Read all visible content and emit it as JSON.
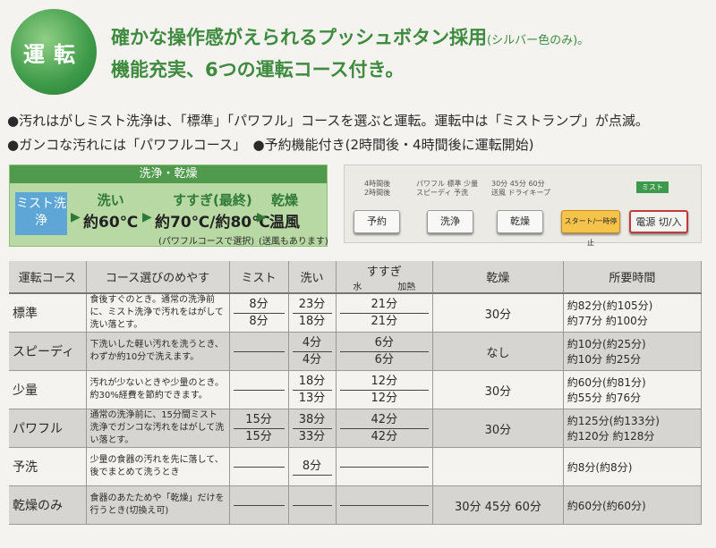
{
  "badge": "運転",
  "headline1": "確かな操作感がえられるプッシュボタン採用",
  "headline1_note": "(シルバー色のみ)。",
  "headline2": "機能充実、6つの運転コース付き。",
  "bullet1": "●汚れはがしミスト洗浄は、「標準」「パワフル」コースを選ぶと運転。運転中は「ミストランプ」が点滅。",
  "bullet2": "●ガンコな汚れには「パワフルコース」　●予約機能付き(2時間後・4時間後に運転開始)",
  "process": {
    "title": "洗浄・乾燥",
    "mist": "ミスト洗浄",
    "wash_label": "洗い",
    "wash_value": "約60℃",
    "rinse_label": "すすぎ(最終)",
    "rinse_value": "約70℃/約80℃",
    "rinse_note": "(パワフルコースで選択)",
    "dry_label": "乾燥",
    "dry_value": "温風",
    "dry_note": "(送風もあります)"
  },
  "panel": {
    "timer_labels": "4時間後\n2時間後",
    "course_labels": "パワフル 標準 少量\nスピーディ 予洗",
    "dry_labels": "30分 45分 60分\n送風 ドライキープ",
    "mist_tag": "ミスト",
    "buttons": [
      "予約",
      "洗浄",
      "乾燥",
      "スタート/一時停止",
      "電源 切/入"
    ]
  },
  "table": {
    "headers": [
      "運転コース",
      "コース選びのめやす",
      "ミスト",
      "洗い",
      "すすぎ",
      "水",
      "加熱",
      "乾燥",
      "所要時間"
    ],
    "rows": [
      {
        "name": "標準",
        "desc": "食後すぐのとき。通常の洗浄前に、ミスト洗浄で汚れをはがして洗い落とす。",
        "mist": [
          "8分",
          "8分"
        ],
        "wash": [
          "23分",
          "18分"
        ],
        "rinse": [
          "21分",
          "21分"
        ],
        "dry": "30分",
        "time": [
          "約82分",
          "約77分"
        ],
        "time2": [
          "約105分",
          "約100分"
        ]
      },
      {
        "name": "スピーディ",
        "desc": "下洗いした軽い汚れを洗うとき、わずか約10分で洗えます。",
        "mist": [
          "",
          ""
        ],
        "wash": [
          "4分",
          "4分"
        ],
        "rinse": [
          "6分",
          "6分"
        ],
        "dry": "なし",
        "time": [
          "約10分",
          "約10分"
        ],
        "time2": [
          "約25分",
          "約25分"
        ]
      },
      {
        "name": "少量",
        "desc": "汚れが少ないときや少量のとき。約30%経費を節約できます。",
        "mist": [
          "",
          ""
        ],
        "wash": [
          "18分",
          "13分"
        ],
        "rinse": [
          "12分",
          "12分"
        ],
        "dry": "30分",
        "time": [
          "約60分",
          "約55分"
        ],
        "time2": [
          "約81分",
          "約76分"
        ]
      },
      {
        "name": "パワフル",
        "desc": "通常の洗浄前に、15分間ミスト洗浄でガンコな汚れをはがして洗い落とす。",
        "mist": [
          "15分",
          "15分"
        ],
        "wash": [
          "38分",
          "33分"
        ],
        "rinse": [
          "42分",
          "42分"
        ],
        "dry": "30分",
        "time": [
          "約125分",
          "約120分"
        ],
        "time2": [
          "約133分",
          "約128分"
        ]
      },
      {
        "name": "予洗",
        "desc": "少量の食器の汚れを先に落して、後でまとめて洗うとき",
        "mist": [
          "",
          ""
        ],
        "wash": [
          "8分",
          ""
        ],
        "rinse": [
          "",
          ""
        ],
        "dry": "",
        "time": [
          "約8分",
          ""
        ],
        "time2": [
          "約8分",
          ""
        ]
      },
      {
        "name": "乾燥のみ",
        "desc": "食器のあたためや「乾燥」だけを行うとき(切換え可)",
        "mist": [
          "",
          ""
        ],
        "wash": [
          "",
          ""
        ],
        "rinse": [
          "",
          ""
        ],
        "dry": "30分 45分 60分",
        "time": [
          "約60分",
          ""
        ],
        "time2": [
          "約60分",
          ""
        ]
      }
    ]
  }
}
